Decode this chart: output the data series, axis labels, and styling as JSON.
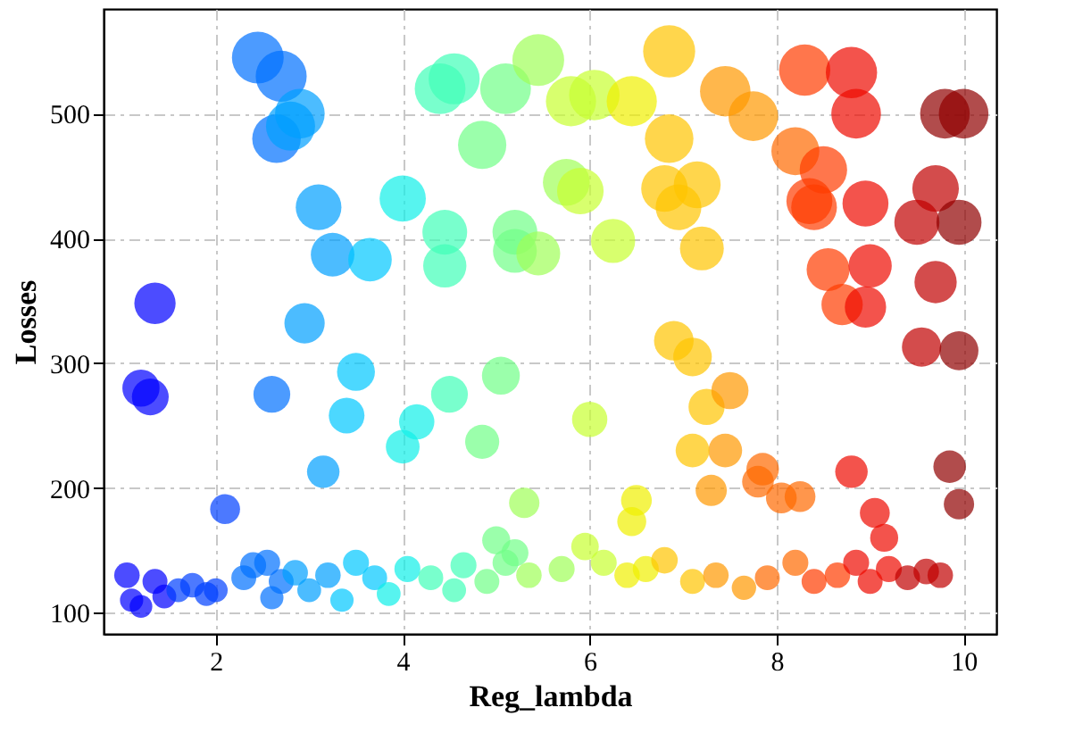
{
  "chart_data": {
    "type": "bubble",
    "xlabel": "Reg_lambda",
    "ylabel": "Losses",
    "xlim": [
      0.8,
      10.35
    ],
    "ylim": [
      83,
      584
    ],
    "xticks": [
      2,
      4,
      6,
      8,
      10
    ],
    "yticks": [
      100,
      200,
      300,
      400,
      500
    ],
    "grid": true,
    "x": [
      2.45,
      2.7,
      2.65,
      2.8,
      2.9,
      3.1,
      3.25,
      3.65,
      4.0,
      2.95,
      1.35,
      1.2,
      1.3,
      2.6,
      3.4,
      3.5,
      3.15,
      2.1,
      4.0,
      4.15,
      4.5,
      4.4,
      4.55,
      4.45,
      4.45,
      4.85,
      5.1,
      5.2,
      5.2,
      5.45,
      5.45,
      5.05,
      4.85,
      5.3,
      5.75,
      5.9,
      5.8,
      6.05,
      6.25,
      6.45,
      6.0,
      6.85,
      6.85,
      6.8,
      6.95,
      7.15,
      7.2,
      7.45,
      7.75,
      6.9,
      7.1,
      7.25,
      7.5,
      7.45,
      7.1,
      7.3,
      7.85,
      7.8,
      8.3,
      8.8,
      8.2,
      8.35,
      8.4,
      8.5,
      8.85,
      8.95,
      8.55,
      8.7,
      8.95,
      8.05,
      8.25,
      8.8,
      9.0,
      9.5,
      9.7,
      9.55,
      9.8,
      10.0,
      9.95,
      9.7,
      9.95,
      9.85,
      9.95,
      9.05,
      9.15,
      6.5,
      6.45,
      5.95,
      5.0,
      5.2,
      1.05,
      1.1,
      1.2,
      1.35,
      1.45,
      1.6,
      1.75,
      1.9,
      2.0,
      2.3,
      2.4,
      2.55,
      2.6,
      2.7,
      2.85,
      3.0,
      3.2,
      3.35,
      3.5,
      3.7,
      3.85,
      4.05,
      4.3,
      4.55,
      4.65,
      4.9,
      5.1,
      5.35,
      5.7,
      6.15,
      6.4,
      6.6,
      6.8,
      7.1,
      7.35,
      7.65,
      7.9,
      8.2,
      8.4,
      8.65,
      8.85,
      9.0,
      9.2,
      9.4,
      9.6,
      9.75
    ],
    "values": [
      545,
      530,
      480,
      490,
      500,
      425,
      387,
      383,
      432,
      332,
      348,
      280,
      273,
      275,
      258,
      293,
      213,
      183,
      233,
      253,
      275,
      520,
      528,
      405,
      378,
      475,
      520,
      405,
      390,
      388,
      543,
      290,
      237,
      188,
      445,
      438,
      510,
      515,
      398,
      510,
      255,
      550,
      480,
      440,
      425,
      443,
      392,
      518,
      498,
      318,
      305,
      265,
      278,
      230,
      230,
      198,
      215,
      205,
      535,
      533,
      470,
      430,
      425,
      455,
      500,
      428,
      375,
      347,
      345,
      192,
      193,
      213,
      378,
      413,
      440,
      313,
      500,
      500,
      413,
      365,
      310,
      217,
      187,
      180,
      160,
      190,
      173,
      153,
      158,
      148,
      130,
      110,
      105,
      125,
      113,
      118,
      122,
      115,
      118,
      128,
      138,
      140,
      112,
      125,
      132,
      118,
      130,
      110,
      140,
      128,
      115,
      135,
      128,
      118,
      138,
      125,
      140,
      130,
      135,
      140,
      130,
      135,
      142,
      125,
      130,
      120,
      128,
      140,
      125,
      130,
      140,
      125,
      135,
      128,
      133,
      130
    ],
    "sizes": [
      0.99,
      0.96,
      0.87,
      0.89,
      0.91,
      0.77,
      0.7,
      0.7,
      0.79,
      0.6,
      0.63,
      0.51,
      0.5,
      0.5,
      0.47,
      0.53,
      0.39,
      0.33,
      0.42,
      0.46,
      0.5,
      0.95,
      0.96,
      0.74,
      0.69,
      0.86,
      0.95,
      0.74,
      0.71,
      0.71,
      0.99,
      0.53,
      0.43,
      0.34,
      0.81,
      0.8,
      0.93,
      0.94,
      0.72,
      0.93,
      0.46,
      1.0,
      0.87,
      0.8,
      0.77,
      0.81,
      0.71,
      0.94,
      0.91,
      0.58,
      0.55,
      0.48,
      0.51,
      0.42,
      0.42,
      0.36,
      0.39,
      0.37,
      0.97,
      0.97,
      0.85,
      0.78,
      0.77,
      0.83,
      0.91,
      0.78,
      0.68,
      0.63,
      0.63,
      0.35,
      0.35,
      0.39,
      0.69,
      0.75,
      0.8,
      0.57,
      0.91,
      0.91,
      0.75,
      0.66,
      0.56,
      0.39,
      0.34,
      0.33,
      0.29,
      0.35,
      0.31,
      0.28,
      0.29,
      0.27,
      0.24,
      0.2,
      0.19,
      0.23,
      0.21,
      0.21,
      0.22,
      0.21,
      0.21,
      0.23,
      0.25,
      0.25,
      0.2,
      0.23,
      0.24,
      0.21,
      0.24,
      0.2,
      0.25,
      0.23,
      0.21,
      0.25,
      0.23,
      0.21,
      0.25,
      0.23,
      0.25,
      0.24,
      0.25,
      0.25,
      0.24,
      0.25,
      0.26,
      0.23,
      0.24,
      0.22,
      0.23,
      0.25,
      0.23,
      0.24,
      0.25,
      0.23,
      0.25,
      0.23,
      0.24,
      0.24
    ],
    "colors": [
      "#0070ff",
      "#0070ff",
      "#0070ff",
      "#00a0ff",
      "#00a0ff",
      "#00a0ff",
      "#00a0ff",
      "#00c8ff",
      "#10f0e8",
      "#00a0ff",
      "#0000ff",
      "#0000ff",
      "#0000ff",
      "#0070ff",
      "#00c8ff",
      "#00c8ff",
      "#00a0ff",
      "#0040ff",
      "#10f0e8",
      "#10f0e8",
      "#40ffb8",
      "#40ffb8",
      "#40ffb8",
      "#40ffb8",
      "#40ffb8",
      "#70ff88",
      "#70ff88",
      "#70ff88",
      "#70ff88",
      "#a0ff58",
      "#a0ff58",
      "#70ff88",
      "#70ff88",
      "#a0ff58",
      "#a0ff58",
      "#c8ff30",
      "#c8ff30",
      "#c8ff30",
      "#c8ff30",
      "#f0f000",
      "#c8ff30",
      "#ffc400",
      "#ffc400",
      "#ffc400",
      "#ffc400",
      "#ffc400",
      "#ffc400",
      "#ff9800",
      "#ff9800",
      "#ffc400",
      "#ffc400",
      "#ffc400",
      "#ff9800",
      "#ff9800",
      "#ffc400",
      "#ff9800",
      "#ff6a00",
      "#ff6a00",
      "#ff3c00",
      "#ee0a00",
      "#ff6a00",
      "#ff3c00",
      "#ff3c00",
      "#ff3c00",
      "#ee0a00",
      "#ee0a00",
      "#ff3c00",
      "#ff3c00",
      "#ee0a00",
      "#ff6a00",
      "#ff6a00",
      "#ee0a00",
      "#ee0a00",
      "#c00000",
      "#c00000",
      "#c00000",
      "#900000",
      "#900000",
      "#900000",
      "#c00000",
      "#900000",
      "#900000",
      "#900000",
      "#ee0a00",
      "#ee0a00",
      "#f0f000",
      "#f0f000",
      "#c8ff30",
      "#70ff88",
      "#70ff88",
      "#0000ff",
      "#0000ff",
      "#0000ff",
      "#0000ff",
      "#0000ff",
      "#0040ff",
      "#0040ff",
      "#0040ff",
      "#0040ff",
      "#0070ff",
      "#0070ff",
      "#0070ff",
      "#0070ff",
      "#0070ff",
      "#00a0ff",
      "#00a0ff",
      "#00a0ff",
      "#00c8ff",
      "#00c8ff",
      "#00c8ff",
      "#10f0e8",
      "#10f0e8",
      "#40ffb8",
      "#40ffb8",
      "#40ffb8",
      "#70ff88",
      "#70ff88",
      "#a0ff58",
      "#a0ff58",
      "#c8ff30",
      "#f0f000",
      "#f0f000",
      "#ffc400",
      "#ffc400",
      "#ff9800",
      "#ff9800",
      "#ff6a00",
      "#ff6a00",
      "#ff3c00",
      "#ff3c00",
      "#ee0a00",
      "#ee0a00",
      "#ee0a00",
      "#c00000",
      "#c00000",
      "#c00000"
    ]
  }
}
